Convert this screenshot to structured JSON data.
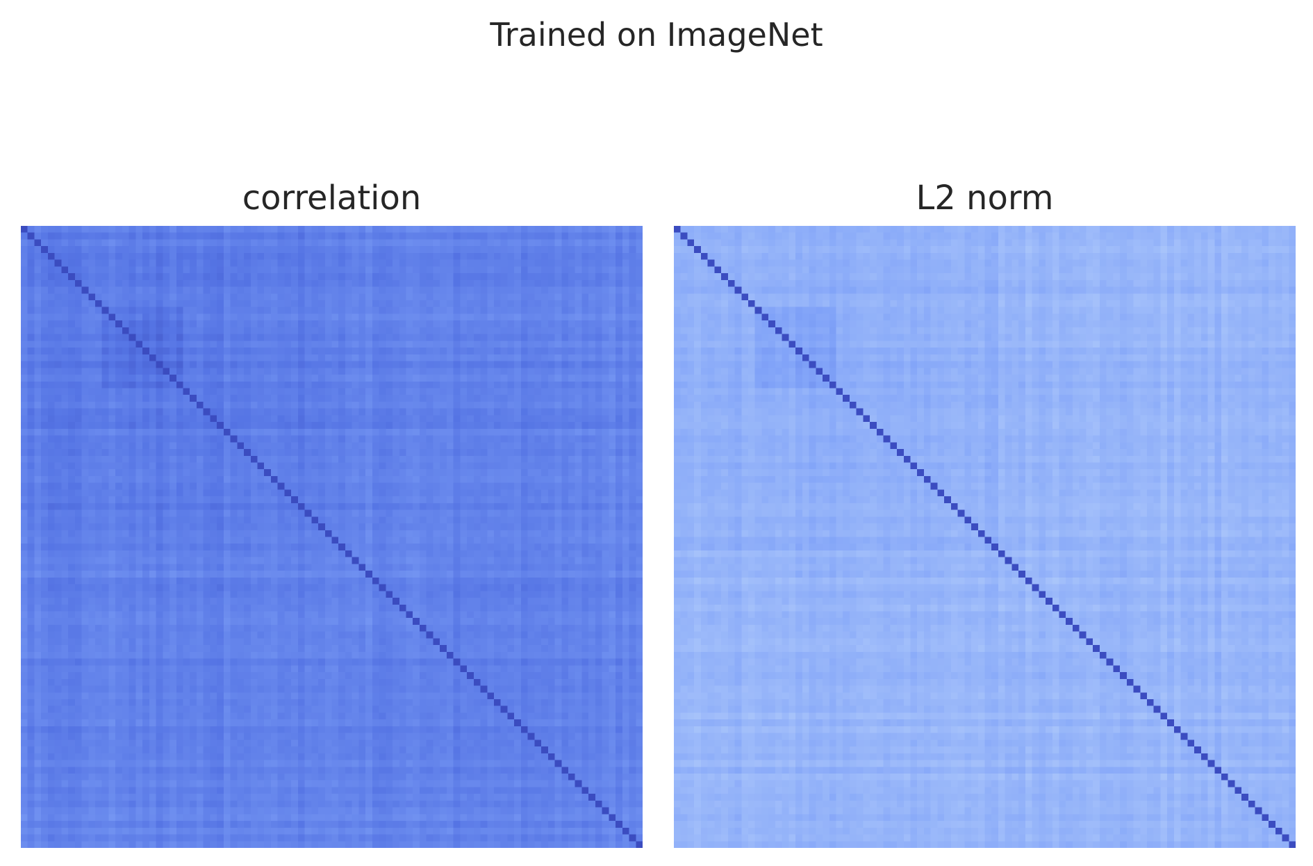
{
  "suptitle": "Trained on ImageNet",
  "colors": {
    "diagonal": "#3b4cc0",
    "colormap": "coolwarm (blue side)"
  },
  "chart_data": [
    {
      "type": "heatmap",
      "title": "correlation",
      "matrix_size": 92,
      "diagonal_value": 1.0,
      "approx_offdiag_range": [
        0.55,
        0.85
      ],
      "approx_block_range": [
        0.75,
        0.85
      ],
      "grid": false,
      "axes_visible": false
    },
    {
      "type": "heatmap",
      "title": "L2 norm",
      "matrix_size": 92,
      "diagonal_value": 1.0,
      "approx_offdiag_range": [
        0.3,
        0.55
      ],
      "approx_block_range": [
        0.5,
        0.6
      ],
      "grid": false,
      "axes_visible": false
    }
  ]
}
